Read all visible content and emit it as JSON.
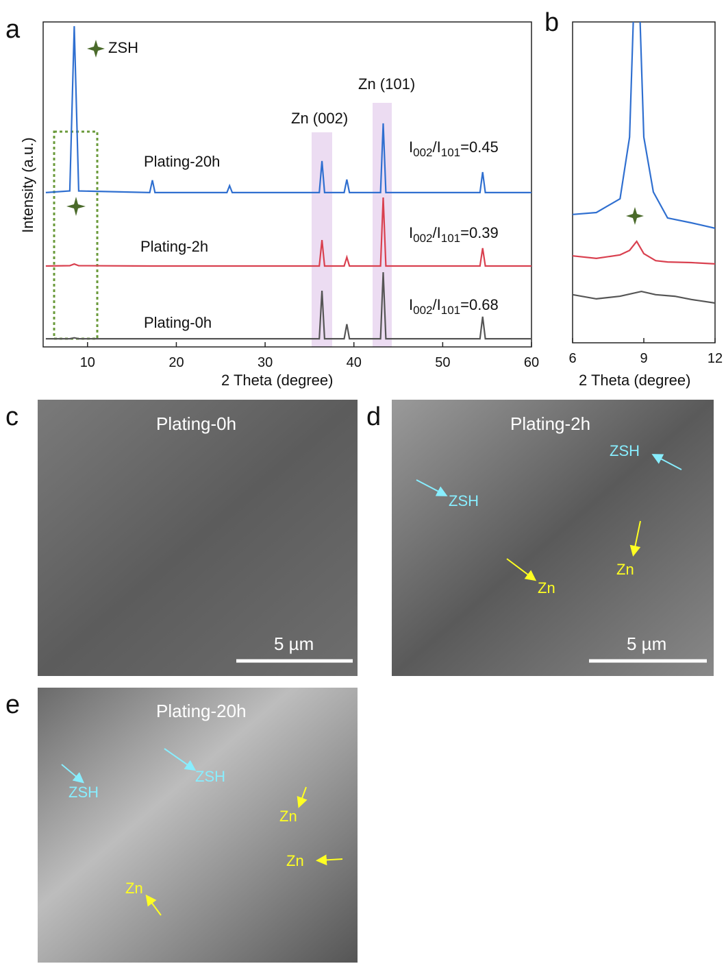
{
  "chart_data": [
    {
      "type": "line",
      "xlabel": "2 Theta (degree)",
      "ylabel": "Intensity (a.u.)",
      "x": [
        5.3,
        8.0,
        8.5,
        9.0,
        17.0,
        17.3,
        17.6,
        25.7,
        26.0,
        26.3,
        36.1,
        36.4,
        36.7,
        38.9,
        39.2,
        39.5,
        43.0,
        43.3,
        43.6,
        54.2,
        54.5,
        54.8,
        60
      ],
      "series": [
        {
          "name": "Plating-20h",
          "color": "#2f6fd0",
          "values": [
            47.5,
            48,
            98.7,
            48,
            47.5,
            51.3,
            47.5,
            47.5,
            49.6,
            47.5,
            47.5,
            57.2,
            47.5,
            47.5,
            51.5,
            47.5,
            47.5,
            68.8,
            47.5,
            47.5,
            53.8,
            47.5,
            47.5
          ]
        },
        {
          "name": "Plating-2h",
          "color": "#d9404f",
          "values": [
            24.9,
            25,
            25.5,
            25,
            24.9,
            24.9,
            24.9,
            24.9,
            24.9,
            24.9,
            24.9,
            32.9,
            24.9,
            24.9,
            27.6,
            24.9,
            24.9,
            46,
            24.9,
            24.9,
            30.4,
            24.9,
            24.9
          ]
        },
        {
          "name": "Plating-0h",
          "color": "#555555",
          "values": [
            2.5,
            2.5,
            2.8,
            2.5,
            2.5,
            2.5,
            2.5,
            2.5,
            2.5,
            2.5,
            2.5,
            17.3,
            2.5,
            2.5,
            7,
            2.5,
            2.5,
            23,
            2.5,
            2.5,
            9.3,
            2.5,
            2.5
          ]
        }
      ],
      "xlim": [
        5,
        60
      ],
      "xticks": [
        10,
        20,
        30,
        40,
        50,
        60
      ],
      "ylim": [
        0,
        100
      ],
      "annotations": [
        "ZSH",
        "Zn (002)",
        "Zn (101)"
      ],
      "ratio_labels": [
        [
          "I",
          "002",
          "/I",
          "101",
          "=0.45"
        ],
        [
          "I",
          "002",
          "/I",
          "101",
          "=0.39"
        ],
        [
          "I",
          "002",
          "/I",
          "101",
          "=0.68"
        ]
      ]
    },
    {
      "type": "line",
      "xlabel": "2 Theta (degree)",
      "series": [
        {
          "name": "Plating-20h",
          "color": "#2f6fd0",
          "x": [
            6,
            7,
            8,
            8.4,
            8.6,
            8.8,
            9.0,
            9.4,
            10,
            11,
            12
          ],
          "values": [
            40.0,
            40.6,
            44.9,
            64.1,
            110,
            110,
            64.1,
            47.0,
            38.9,
            37.4,
            35.7
          ]
        },
        {
          "name": "Plating-2h",
          "color": "#d9404f",
          "x": [
            6,
            7,
            8,
            8.4,
            8.7,
            9.0,
            9.5,
            10,
            11,
            12
          ],
          "values": [
            27.1,
            26.3,
            27.4,
            28.8,
            31.6,
            27.8,
            25.6,
            25.2,
            25.0,
            24.6
          ]
        },
        {
          "name": "Plating-0h",
          "color": "#555555",
          "x": [
            6,
            7,
            8,
            8.9,
            9.5,
            10.3,
            11,
            12
          ],
          "values": [
            15.0,
            13.7,
            14.5,
            16.0,
            15.0,
            14.5,
            13.5,
            12.4
          ]
        }
      ],
      "xlim": [
        6,
        12
      ],
      "xticks": [
        6,
        9,
        12
      ],
      "ylim": [
        0,
        100
      ]
    }
  ],
  "panel_labels": [
    "a",
    "b",
    "c",
    "d",
    "e"
  ],
  "images": [
    {
      "title": "Plating-0h",
      "scale_bar": "5 µm"
    },
    {
      "title": "Plating-2h",
      "scale_bar": "5 µm",
      "labels": [
        "ZSH",
        "ZSH",
        "Zn",
        "Zn"
      ]
    },
    {
      "title": "Plating-20h",
      "labels": [
        "ZSH",
        "ZSH",
        "Zn",
        "Zn",
        "Zn"
      ]
    }
  ]
}
